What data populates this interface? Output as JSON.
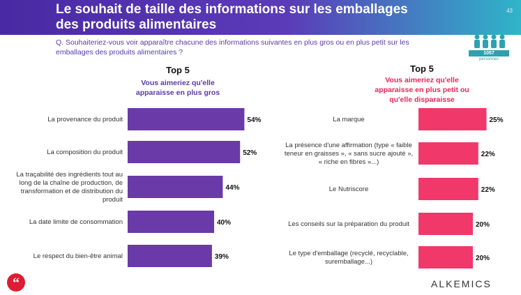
{
  "header": {
    "title_line1": "Le souhait de taille des informations sur les emballages",
    "title_line2": "des produits alimentaires",
    "page_number": "43"
  },
  "question": {
    "line1": "Q. Souhaiteriez-vous voir apparaître chacune des informations suivantes en plus gros ou en plus petit sur les",
    "line2": "emballages des produits alimentaires ?"
  },
  "sample": {
    "count": "1057",
    "label": "personnes"
  },
  "left": {
    "heading": "Top 5",
    "subtitle_line1": "Vous aimeriez qu'elle",
    "subtitle_line2": "apparaisse en plus gros"
  },
  "right": {
    "heading": "Top 5",
    "subtitle_line1": "Vous aimeriez qu'elle",
    "subtitle_line2": "apparaisse en plus petit ou",
    "subtitle_line3": "qu'elle disparaisse"
  },
  "chart_data": [
    {
      "type": "bar",
      "orientation": "horizontal",
      "color": "#6a3aa8",
      "categories": [
        [
          "La provenance du produit"
        ],
        [
          "La composition du produit"
        ],
        [
          "La traçabilité des ingrédients tout au",
          "long de la chaîne de production, de",
          "transformation et de distribution du",
          "produit"
        ],
        [
          "La date limite de consommation"
        ],
        [
          "Le respect du bien-être animal"
        ]
      ],
      "values": [
        54,
        52,
        44,
        40,
        39
      ],
      "value_labels": [
        "54%",
        "52%",
        "44%",
        "40%",
        "39%"
      ],
      "unit": "%"
    },
    {
      "type": "bar",
      "orientation": "horizontal",
      "color": "#f0386a",
      "categories": [
        [
          "La marque"
        ],
        [
          "La présence d'une affirmation (type « faible",
          "teneur en graisses », « sans sucre ajouté »,",
          "« riche en fibres »...)"
        ],
        [
          "Le Nutriscore"
        ],
        [
          "Les conseils sur la préparation du produit"
        ],
        [
          "Le type d'emballage (recyclé, recyclable,",
          "suremballage...)"
        ]
      ],
      "values": [
        25,
        22,
        22,
        20,
        20
      ],
      "value_labels": [
        "25%",
        "22%",
        "22%",
        "20%",
        "20%"
      ],
      "unit": "%"
    }
  ],
  "footer": {
    "logo": "ALKEMICS",
    "quote_icon": "quote-icon"
  }
}
